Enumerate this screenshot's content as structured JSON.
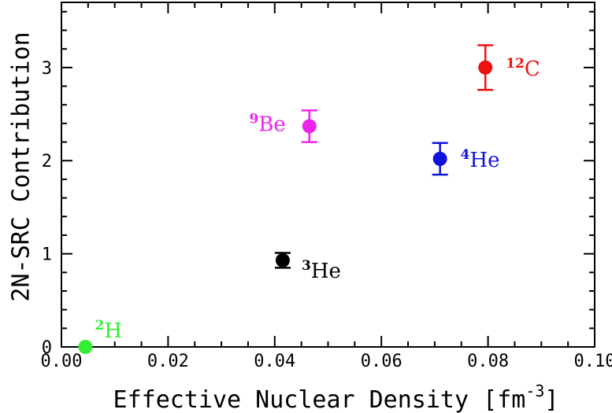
{
  "chart_data": {
    "type": "scatter",
    "xlabel": "Effective Nuclear Density [fm",
    "xlabel_unit_exponent": "-3",
    "xlabel_close": "]",
    "ylabel": "2N-SRC Contribution",
    "xlim": [
      0.0,
      0.1
    ],
    "ylim": [
      0,
      3.7
    ],
    "x_ticks": [
      0.0,
      0.02,
      0.04,
      0.06,
      0.08,
      0.1
    ],
    "x_tick_labels": [
      "0.00",
      "0.02",
      "0.04",
      "0.06",
      "0.08",
      "0.10"
    ],
    "y_ticks": [
      0,
      1,
      2,
      3
    ],
    "y_tick_labels": [
      "0",
      "1",
      "2",
      "3"
    ],
    "grid": false,
    "points": [
      {
        "mass": "2",
        "element": "H",
        "x": 0.0045,
        "y": 0.0,
        "err": 0.0,
        "color": "#33ee33",
        "label_side": "upper-right"
      },
      {
        "mass": "3",
        "element": "He",
        "x": 0.0415,
        "y": 0.93,
        "err": 0.08,
        "color": "#000000",
        "label_side": "lower-right"
      },
      {
        "mass": "9",
        "element": "Be",
        "x": 0.0465,
        "y": 2.37,
        "err": 0.17,
        "color": "#ee22ee",
        "label_side": "left"
      },
      {
        "mass": "4",
        "element": "He",
        "x": 0.071,
        "y": 2.02,
        "err": 0.17,
        "color": "#1111dd",
        "label_side": "right"
      },
      {
        "mass": "12",
        "element": "C",
        "x": 0.0795,
        "y": 3.0,
        "err": 0.24,
        "color": "#ee1111",
        "label_side": "right"
      }
    ]
  }
}
